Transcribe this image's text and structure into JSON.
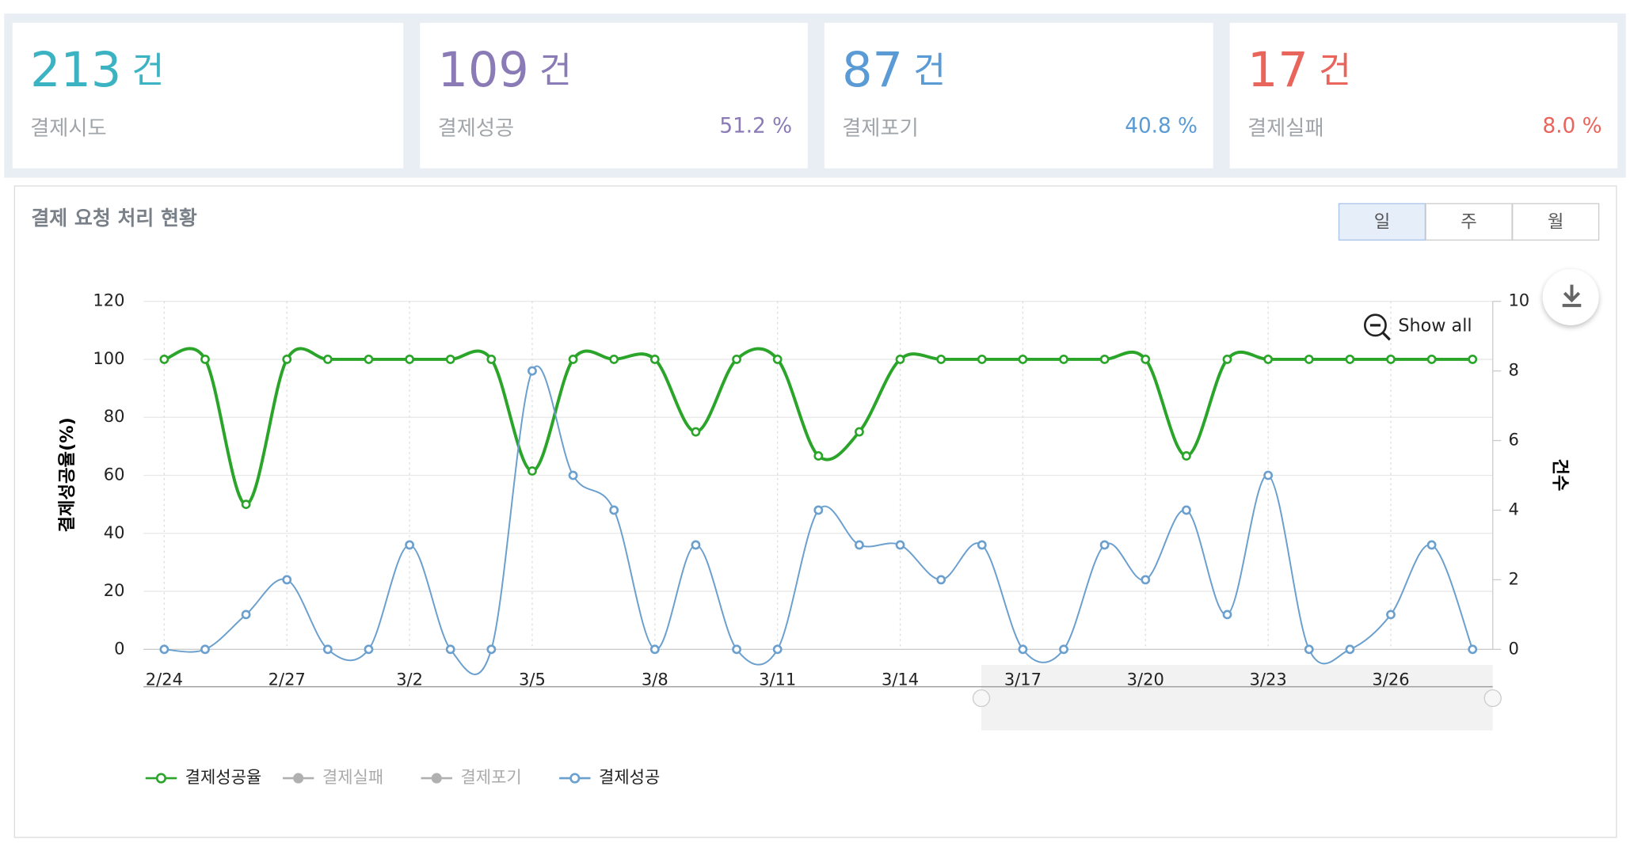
{
  "cards": [
    {
      "value": 213,
      "unit": "건",
      "label": "결제시도",
      "color": "#3bb3c3"
    },
    {
      "value": 109,
      "unit": "건",
      "label": "결제성공",
      "percent": "51.2 %",
      "color": "#8a7ab5"
    },
    {
      "value": 87,
      "unit": "건",
      "label": "결제포기",
      "percent": "40.8 %",
      "color": "#5b9bd5"
    },
    {
      "value": 17,
      "unit": "건",
      "label": "결제실패",
      "percent": "8.0 %",
      "color": "#e9645b"
    }
  ],
  "panel": {
    "title": "결제 요청 처리 현황",
    "tabs": [
      "일",
      "주",
      "월"
    ],
    "selected_tab": 0,
    "show_all": "Show all"
  },
  "chart_data": {
    "type": "line",
    "categories": [
      "2/24",
      null,
      null,
      "2/27",
      null,
      null,
      "3/2",
      null,
      null,
      "3/5",
      null,
      null,
      "3/8",
      null,
      null,
      "3/11",
      null,
      null,
      "3/14",
      null,
      null,
      "3/17",
      null,
      null,
      "3/20",
      null,
      null,
      "3/23",
      null,
      null,
      "3/26",
      null,
      null
    ],
    "ylabel": "결제성공율(%)",
    "y2label": "건수",
    "ylim": [
      0,
      120
    ],
    "yticks": [
      0,
      20,
      40,
      60,
      80,
      100,
      120
    ],
    "y2lim": [
      0,
      10
    ],
    "y2ticks": [
      0,
      2,
      4,
      6,
      8,
      10
    ],
    "grid": true,
    "series": [
      {
        "name": "결제성공율",
        "color": "#2aa52a",
        "visible": true,
        "values": [
          100,
          100,
          50,
          100,
          100,
          100,
          100,
          100,
          100,
          61.5,
          100,
          100,
          100,
          75,
          100,
          100,
          66.7,
          75,
          100,
          100,
          100,
          100,
          100,
          100,
          100,
          66.7,
          100,
          100,
          100,
          100,
          100,
          100,
          100
        ]
      },
      {
        "name": "결제실패",
        "color": "#b0b0b0",
        "visible": false
      },
      {
        "name": "결제포기",
        "color": "#b0b0b0",
        "visible": false
      },
      {
        "name": "결제성공",
        "color": "#6a9fce",
        "visible": true,
        "axis": "y2",
        "values": [
          0,
          0,
          1,
          2,
          0,
          0,
          3,
          0,
          0,
          8,
          5,
          4,
          0,
          3,
          0,
          0,
          4,
          3,
          3,
          2,
          3,
          0,
          0,
          3,
          2,
          4,
          1,
          5,
          0,
          0,
          1,
          3,
          0
        ]
      }
    ]
  }
}
